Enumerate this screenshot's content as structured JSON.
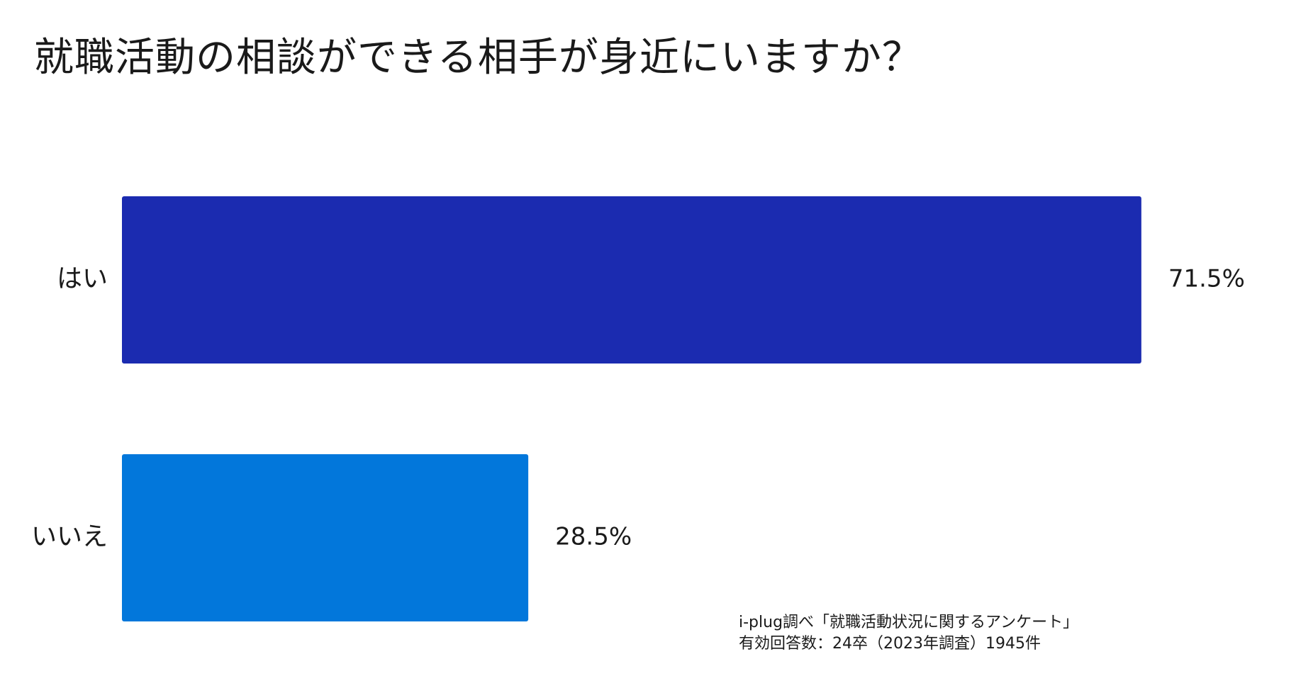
{
  "title": "就職活動の相談ができる相手が身近にいますか？",
  "chart_data": {
    "type": "bar",
    "orientation": "horizontal",
    "categories": [
      "はい",
      "いいえ"
    ],
    "values": [
      71.5,
      28.5
    ],
    "value_labels": [
      "71.5%",
      "28.5%"
    ],
    "colors": [
      "#1b2bb0",
      "#0277db"
    ],
    "xlim": [
      0,
      100
    ],
    "grid": false,
    "legend": "none"
  },
  "source": {
    "line1": "i-plug調べ「就職活動状況に関するアンケート」",
    "line2": "有効回答数：24卒（2023年調査）1945件"
  }
}
